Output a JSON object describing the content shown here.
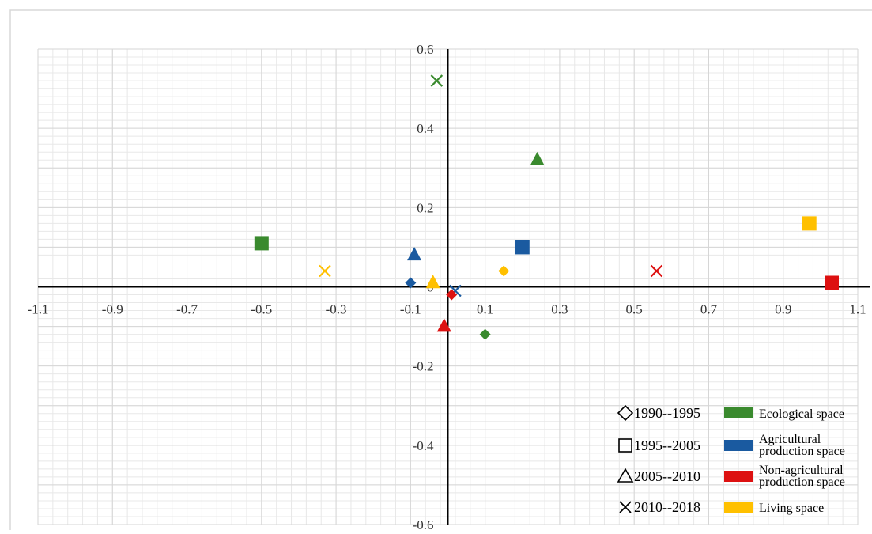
{
  "chart_data": {
    "type": "scatter",
    "title": "",
    "xlabel": "",
    "ylabel": "",
    "xlim": [
      -1.1,
      1.1
    ],
    "ylim": [
      -0.6,
      0.6
    ],
    "grid": true,
    "xticks": [
      -1.1,
      -0.9,
      -0.7,
      -0.5,
      -0.3,
      -0.1,
      0.1,
      0.3,
      0.5,
      0.7,
      0.9,
      1.1
    ],
    "xtick_labels": [
      "-1.1",
      "-0.9",
      "-0.7",
      "-0.5",
      "-0.3",
      "-0.1",
      "0.1",
      "0.3",
      "0.5",
      "0.7",
      "0.9",
      "1.1"
    ],
    "yticks": [
      0.6,
      0.4,
      0.2,
      0,
      -0.2,
      -0.4,
      -0.6
    ],
    "ytick_labels": [
      "0.6",
      "0.4",
      "0.2",
      "0",
      "-0.2",
      "-0.4",
      "-0.6"
    ],
    "legend_position": "bottom-right",
    "periods": [
      {
        "label": "1990--1995",
        "marker": "diamond"
      },
      {
        "label": "1995--2005",
        "marker": "square"
      },
      {
        "label": "2005--2010",
        "marker": "triangle"
      },
      {
        "label": "2010--2018",
        "marker": "x"
      }
    ],
    "categories": [
      {
        "label_lines": [
          "Ecological space"
        ],
        "color": "#3a8a2e"
      },
      {
        "label_lines": [
          "Agricultural",
          "production space"
        ],
        "color": "#1a5aa0"
      },
      {
        "label_lines": [
          "Non-agricultural",
          "production space"
        ],
        "color": "#dd1111"
      },
      {
        "label_lines": [
          "Living space"
        ],
        "color": "#ffc000"
      }
    ],
    "points": [
      {
        "category": 0,
        "period": 0,
        "x": 0.1,
        "y": -0.12
      },
      {
        "category": 0,
        "period": 1,
        "x": -0.5,
        "y": 0.11
      },
      {
        "category": 0,
        "period": 2,
        "x": 0.24,
        "y": 0.32
      },
      {
        "category": 0,
        "period": 3,
        "x": -0.03,
        "y": 0.52
      },
      {
        "category": 1,
        "period": 0,
        "x": -0.1,
        "y": 0.01
      },
      {
        "category": 1,
        "period": 1,
        "x": 0.2,
        "y": 0.1
      },
      {
        "category": 1,
        "period": 2,
        "x": -0.09,
        "y": 0.08
      },
      {
        "category": 1,
        "period": 3,
        "x": 0.02,
        "y": -0.01
      },
      {
        "category": 2,
        "period": 0,
        "x": 0.01,
        "y": -0.02
      },
      {
        "category": 2,
        "period": 1,
        "x": 1.03,
        "y": 0.01
      },
      {
        "category": 2,
        "period": 2,
        "x": -0.01,
        "y": -0.1
      },
      {
        "category": 2,
        "period": 3,
        "x": 0.56,
        "y": 0.04
      },
      {
        "category": 3,
        "period": 0,
        "x": 0.15,
        "y": 0.04
      },
      {
        "category": 3,
        "period": 1,
        "x": 0.97,
        "y": 0.16
      },
      {
        "category": 3,
        "period": 2,
        "x": -0.04,
        "y": 0.01
      },
      {
        "category": 3,
        "period": 3,
        "x": -0.33,
        "y": 0.04
      }
    ]
  }
}
